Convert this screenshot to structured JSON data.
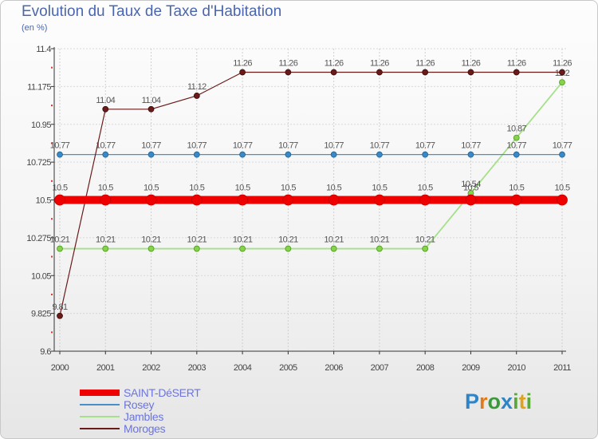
{
  "title": "Evolution du Taux de Taxe d'Habitation",
  "subtitle": "(en %)",
  "logo_text": "Proxiti",
  "chart_data": {
    "type": "line",
    "title": "Evolution du Taux de Taxe d'Habitation",
    "ylabel": "(en %)",
    "xlabel": "",
    "ylim": [
      9.6,
      11.4
    ],
    "yticks": [
      "11.4",
      "11.175",
      "10.95",
      "10.725",
      "10.5",
      "10.275",
      "10.05",
      "9.825",
      "9.6"
    ],
    "x": [
      "2000",
      "2001",
      "2002",
      "2003",
      "2004",
      "2005",
      "2006",
      "2007",
      "2008",
      "2009",
      "2010",
      "2011"
    ],
    "series": [
      {
        "name": "SAINT-DéSERT",
        "color": "#ee0000",
        "values": [
          10.5,
          10.5,
          10.5,
          10.5,
          10.5,
          10.5,
          10.5,
          10.5,
          10.5,
          10.5,
          10.5,
          10.5
        ],
        "labels": [
          "10.5",
          "10.5",
          "10.5",
          "10.5",
          "10.5",
          "10.5",
          "10.5",
          "10.5",
          "10.5",
          "10.5",
          "10.5",
          "10.5"
        ]
      },
      {
        "name": "Rosey",
        "color": "#4a90c8",
        "values": [
          10.77,
          10.77,
          10.77,
          10.77,
          10.77,
          10.77,
          10.77,
          10.77,
          10.77,
          10.77,
          10.77,
          10.77
        ],
        "labels": [
          "10.77",
          "10.77",
          "10.77",
          "10.77",
          "10.77",
          "10.77",
          "10.77",
          "10.77",
          "10.77",
          "10.77",
          "10.77",
          "10.77"
        ]
      },
      {
        "name": "Jambles",
        "color": "#8ed64a",
        "values": [
          10.21,
          10.21,
          10.21,
          10.21,
          10.21,
          10.21,
          10.21,
          10.21,
          10.21,
          10.54,
          10.87,
          11.2
        ],
        "labels": [
          "10.21",
          "10.21",
          "10.21",
          "10.21",
          "10.21",
          "10.21",
          "10.21",
          "10.21",
          "10.21",
          "10.54",
          "10.87",
          "11.2"
        ]
      },
      {
        "name": "Moroges",
        "color": "#6b1a1a",
        "values": [
          9.81,
          11.04,
          11.04,
          11.12,
          11.26,
          11.26,
          11.26,
          11.26,
          11.26,
          11.26,
          11.26,
          11.26
        ],
        "labels": [
          "9.81",
          "11.04",
          "11.04",
          "11.12",
          "11.26",
          "11.26",
          "11.26",
          "11.26",
          "11.26",
          "11.26",
          "11.26",
          "11.26"
        ]
      }
    ]
  }
}
